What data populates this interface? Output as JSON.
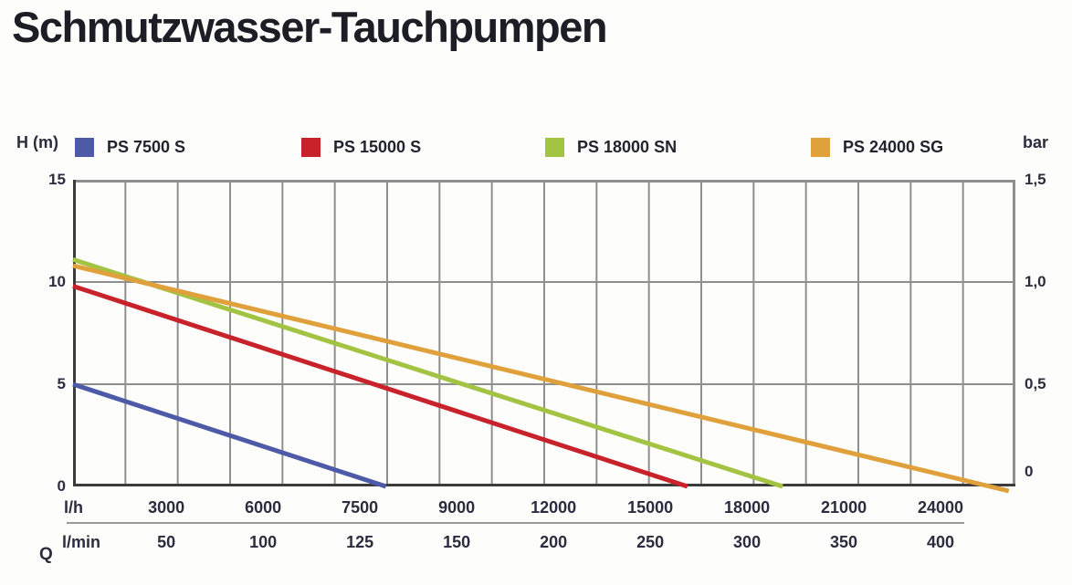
{
  "title": "Schmutzwasser-Tauchpumpen",
  "chart_data": {
    "type": "line",
    "title": "Schmutzwasser-Tauchpumpen",
    "y_axis_left": {
      "label": "H (m)",
      "unit": "m",
      "range": [
        0,
        15
      ],
      "ticks": [
        "15",
        "10",
        "5",
        "0"
      ]
    },
    "y_axis_right": {
      "label": "bar",
      "unit": "bar",
      "range": [
        0,
        1.5
      ],
      "ticks": [
        "1,5",
        "1,0",
        "0,5",
        "0"
      ]
    },
    "x_axis_lh": {
      "label": "l/h",
      "ticks": [
        "3000",
        "6000",
        "7500",
        "9000",
        "12000",
        "15000",
        "18000",
        "21000",
        "24000"
      ]
    },
    "x_axis_lmin": {
      "label": "l/min",
      "axis_letter": "Q",
      "ticks": [
        "50",
        "100",
        "125",
        "150",
        "200",
        "250",
        "300",
        "350",
        "400"
      ]
    },
    "series": [
      {
        "name": "PS 7500 S",
        "color": "#4d5aa7",
        "h_start_m": 5.0,
        "q_end_lh": 7900,
        "q_end_lmin": 132,
        "end_frac": 0.332,
        "dip_below_axis": false
      },
      {
        "name": "PS 15000 S",
        "color": "#c8222a",
        "h_start_m": 9.8,
        "q_end_lh": 16200,
        "q_end_lmin": 270,
        "end_frac": 0.652,
        "dip_below_axis": false
      },
      {
        "name": "PS 18000 SN",
        "color": "#a3c343",
        "h_start_m": 11.1,
        "q_end_lh": 19100,
        "q_end_lmin": 318,
        "end_frac": 0.753,
        "dip_below_axis": false
      },
      {
        "name": "PS 24000 SG",
        "color": "#e0a13c",
        "h_start_m": 10.8,
        "q_end_lh": 26100,
        "q_end_lmin": 435,
        "end_frac": 0.993,
        "dip_below_axis": true
      }
    ],
    "legend": {
      "position": "top"
    },
    "layout": {
      "grid": true,
      "v_divisions": 18,
      "h_gridline_values": [
        15,
        10,
        5,
        0
      ],
      "tick_first_frac": 0.099,
      "tick_step_frac": 0.1027
    }
  },
  "colors": {
    "grid": "#8f8f8f",
    "axis_dark": "#3b3b3b",
    "separator": "#9a9a9a",
    "text_dark": "#1d1d25",
    "tick_text": "#2c2c3e"
  }
}
